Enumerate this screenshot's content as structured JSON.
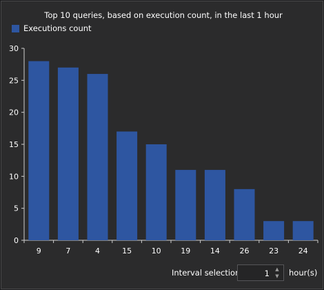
{
  "colors": {
    "bar": "#2e56a1",
    "text": "#ffffff",
    "axis": "#d0d0d0"
  },
  "chart_data": {
    "type": "bar",
    "title": "Top 10 queries, based on execution count, in the last 1 hour",
    "categories": [
      "9",
      "7",
      "4",
      "15",
      "10",
      "19",
      "14",
      "26",
      "23",
      "24"
    ],
    "series": [
      {
        "name": "Executions count",
        "values": [
          28,
          27,
          26,
          17,
          15,
          11,
          11,
          8,
          3,
          3
        ]
      }
    ],
    "ylim": [
      0,
      30
    ],
    "yticks": [
      0,
      5,
      10,
      15,
      20,
      25,
      30
    ],
    "grid": false,
    "legend": "top-left"
  },
  "footer": {
    "interval_label": "Interval selection",
    "interval_value": "1",
    "interval_unit": "hour(s)"
  }
}
